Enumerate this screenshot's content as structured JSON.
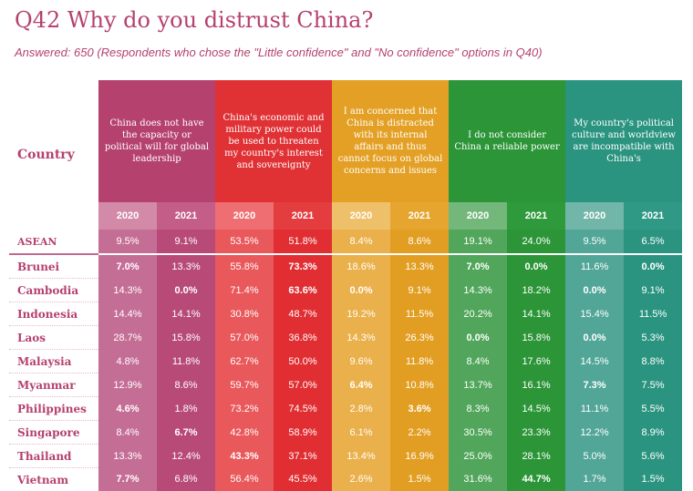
{
  "title": "Q42 Why do you distrust China?",
  "subtitle": "Answered: 650 (Respondents who chose the \"Little confidence\" and \"No confidence\" options in Q40)",
  "country_header": "Country",
  "years": [
    "2020",
    "2021"
  ],
  "colors": {
    "accent": "#b5416f",
    "group1": "#b5416f",
    "group2": "#e03135",
    "group3": "#e3a025",
    "group4": "#2b9537",
    "group5": "#2b9480"
  },
  "groups": [
    {
      "label": "China does not have the capacity or political will for global leadership"
    },
    {
      "label": "China's economic and military power could be used to threaten my country's interest and sovereignty"
    },
    {
      "label": "I am concerned that China is distracted with its internal affairs and thus cannot focus on global concerns and issues"
    },
    {
      "label": "I do not consider China a reliable power"
    },
    {
      "label": "My country's political culture and worldview are incompatible with China's"
    }
  ],
  "rows": [
    {
      "country": "ASEAN",
      "values": [
        "9.5%",
        "9.1%",
        "53.5%",
        "51.8%",
        "8.4%",
        "8.6%",
        "19.1%",
        "24.0%",
        "9.5%",
        "6.5%"
      ]
    },
    {
      "country": "Brunei",
      "values": [
        "7.0%",
        "13.3%",
        "55.8%",
        "73.3%",
        "18.6%",
        "13.3%",
        "7.0%",
        "0.0%",
        "11.6%",
        "0.0%"
      ]
    },
    {
      "country": "Cambodia",
      "values": [
        "14.3%",
        "0.0%",
        "71.4%",
        "63.6%",
        "0.0%",
        "9.1%",
        "14.3%",
        "18.2%",
        "0.0%",
        "9.1%"
      ]
    },
    {
      "country": "Indonesia",
      "values": [
        "14.4%",
        "14.1%",
        "30.8%",
        "48.7%",
        "19.2%",
        "11.5%",
        "20.2%",
        "14.1%",
        "15.4%",
        "11.5%"
      ]
    },
    {
      "country": "Laos",
      "values": [
        "28.7%",
        "15.8%",
        "57.0%",
        "36.8%",
        "14.3%",
        "26.3%",
        "0.0%",
        "15.8%",
        "0.0%",
        "5.3%"
      ]
    },
    {
      "country": "Malaysia",
      "values": [
        "4.8%",
        "11.8%",
        "62.7%",
        "50.0%",
        "9.6%",
        "11.8%",
        "8.4%",
        "17.6%",
        "14.5%",
        "8.8%"
      ]
    },
    {
      "country": "Myanmar",
      "values": [
        "12.9%",
        "8.6%",
        "59.7%",
        "57.0%",
        "6.4%",
        "10.8%",
        "13.7%",
        "16.1%",
        "7.3%",
        "7.5%"
      ]
    },
    {
      "country": "Philippines",
      "values": [
        "4.6%",
        "1.8%",
        "73.2%",
        "74.5%",
        "2.8%",
        "3.6%",
        "8.3%",
        "14.5%",
        "11.1%",
        "5.5%"
      ]
    },
    {
      "country": "Singapore",
      "values": [
        "8.4%",
        "6.7%",
        "42.8%",
        "58.9%",
        "6.1%",
        "2.2%",
        "30.5%",
        "23.3%",
        "12.2%",
        "8.9%"
      ]
    },
    {
      "country": "Thailand",
      "values": [
        "13.3%",
        "12.4%",
        "43.3%",
        "37.1%",
        "13.4%",
        "16.9%",
        "25.0%",
        "28.1%",
        "5.0%",
        "5.6%"
      ]
    },
    {
      "country": "Vietnam",
      "values": [
        "7.7%",
        "6.8%",
        "56.4%",
        "45.5%",
        "2.6%",
        "1.5%",
        "31.6%",
        "44.7%",
        "1.7%",
        "1.5%"
      ]
    }
  ]
}
